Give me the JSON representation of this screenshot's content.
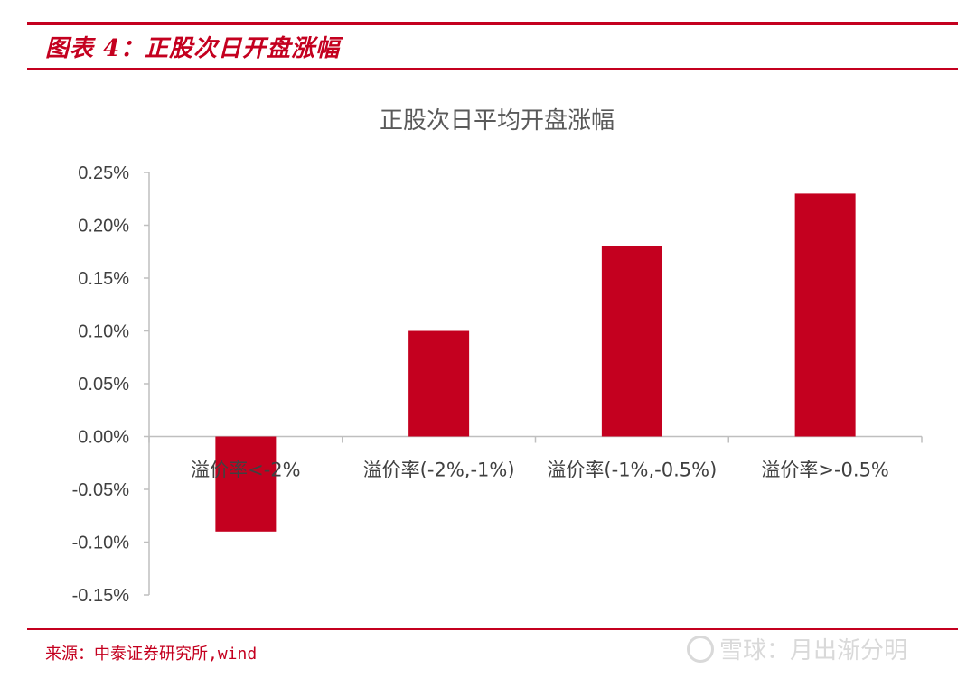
{
  "figure": {
    "title": "图表 4：正股次日开盘涨幅",
    "source": "来源：中泰证券研究所,wind",
    "watermark": "雪球：月出渐分明"
  },
  "colors": {
    "accent": "#c4001f",
    "bar": "#c4001f",
    "axis": "#bfbfbf",
    "text": "#404040",
    "title_text": "#595959"
  },
  "chart_data": {
    "type": "bar",
    "title": "正股次日平均开盘涨幅",
    "categories": [
      "溢价率<-2%",
      "溢价率(-2%,-1%)",
      "溢价率(-1%,-0.5%)",
      "溢价率>-0.5%"
    ],
    "values": [
      -0.0009,
      0.001,
      0.0018,
      0.0023
    ],
    "ylim": [
      -0.0015,
      0.0025
    ],
    "yticks": [
      0.0025,
      0.002,
      0.0015,
      0.001,
      0.0005,
      0,
      -0.0005,
      -0.001,
      -0.0015
    ],
    "ytick_labels": [
      "0.25%",
      "0.20%",
      "0.15%",
      "0.10%",
      "0.05%",
      "0.00%",
      "-0.05%",
      "-0.10%",
      "-0.15%"
    ],
    "xlabel": "",
    "ylabel": "",
    "grid": false,
    "legend": "none"
  }
}
